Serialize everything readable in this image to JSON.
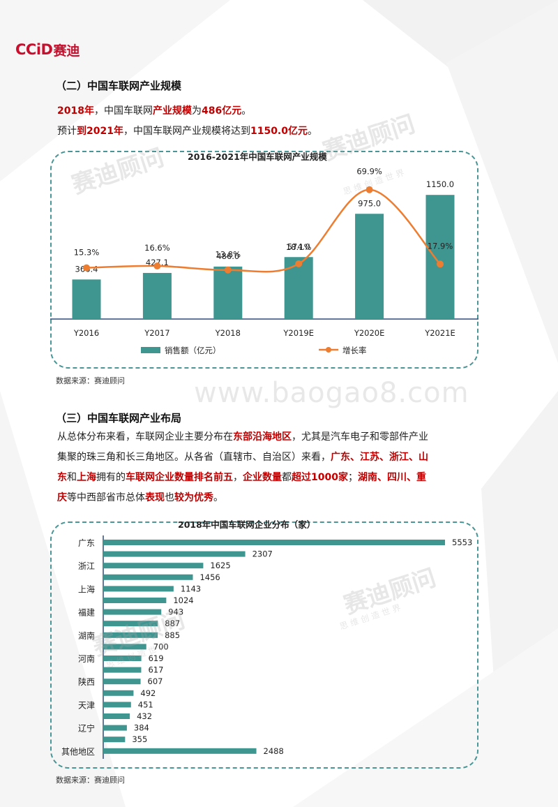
{
  "brand": {
    "logo_latin": "CCiD",
    "logo_cn": "赛迪"
  },
  "section2": {
    "title": "（二）中国车联网产业规模",
    "line1": [
      {
        "t": "2018年",
        "red": true
      },
      {
        "t": "，中国车联网",
        "red": false
      },
      {
        "t": "产业规模",
        "red": true
      },
      {
        "t": "为",
        "red": false
      },
      {
        "t": "486亿元",
        "red": true
      },
      {
        "t": "。",
        "red": false
      }
    ],
    "line2": [
      {
        "t": "预计",
        "red": false
      },
      {
        "t": "到2021年",
        "red": true
      },
      {
        "t": "，中国车联网产业规模将达到",
        "red": false
      },
      {
        "t": "1150.0亿元",
        "red": true
      },
      {
        "t": "。",
        "red": false
      }
    ]
  },
  "chart1_source": "数据来源：赛迪顾问",
  "section3": {
    "title": "（三）中国车联网产业布局",
    "paragraph_lines": [
      [
        {
          "t": "从总体分布来看，车联网企业主要分布在",
          "red": false
        },
        {
          "t": "东部沿海地区",
          "red": true
        },
        {
          "t": "，尤其是汽车电子和零部件产业",
          "red": false
        }
      ],
      [
        {
          "t": "集聚的珠三角和长三角地区。从各省（直辖市、自治区）来看，",
          "red": false
        },
        {
          "t": "广东、江苏、浙江、山",
          "red": true
        }
      ],
      [
        {
          "t": "东",
          "red": true
        },
        {
          "t": "和",
          "red": false
        },
        {
          "t": "上海",
          "red": true
        },
        {
          "t": "拥有的",
          "red": false
        },
        {
          "t": "车联网企业数量排名前五",
          "red": true
        },
        {
          "t": "，",
          "red": false
        },
        {
          "t": "企业数量",
          "red": true
        },
        {
          "t": "都",
          "red": false
        },
        {
          "t": "超过1000家",
          "red": true
        },
        {
          "t": "；",
          "red": false
        },
        {
          "t": "湖南、四川、重",
          "red": true
        }
      ],
      [
        {
          "t": "庆",
          "red": true
        },
        {
          "t": "等中西部省市总体",
          "red": false
        },
        {
          "t": "表现",
          "red": true
        },
        {
          "t": "也",
          "red": false
        },
        {
          "t": "较为优秀",
          "red": true
        },
        {
          "t": "。",
          "red": false
        }
      ]
    ]
  },
  "chart2_source": "数据来源：赛迪顾问",
  "watermark": {
    "url": "www.baogao8.com",
    "brand": "赛迪顾问",
    "slogan": "思 维 创 造 世 界"
  },
  "colors": {
    "brand_red": "#c8102e",
    "highlight_red": "#c00000",
    "bar_teal": "#3f9590",
    "line_orange": "#ed7d31",
    "frame_teal": "#4a9595"
  },
  "chart_data": [
    {
      "type": "bar+line",
      "title": "2016-2021年中国车联网产业规模",
      "categories": [
        "Y2016",
        "Y2017",
        "Y2018",
        "Y2019E",
        "Y2020E",
        "Y2021E"
      ],
      "series": [
        {
          "name": "销售额（亿元）",
          "type": "bar",
          "values": [
            366.4,
            427.1,
            486.0,
            574.0,
            975.0,
            1150.0
          ],
          "labels": [
            "366.4",
            "427.1",
            "486.0",
            "574.0",
            "975.0",
            "1150.0"
          ]
        },
        {
          "name": "增长率",
          "type": "line",
          "values": [
            15.3,
            16.6,
            13.8,
            18.1,
            69.9,
            17.9
          ],
          "labels": [
            "15.3%",
            "16.6%",
            "13.8%",
            "18.1%",
            "69.9%",
            "17.9%"
          ]
        }
      ],
      "ylim": [
        0,
        1300
      ],
      "y2lim": [
        -20,
        80
      ],
      "legend": "bottom"
    },
    {
      "type": "bar",
      "orientation": "horizontal",
      "title": "2018年中国车联网企业分布（家）",
      "visible_category_labels": [
        "广东",
        "",
        "浙江",
        "",
        "上海",
        "",
        "福建",
        "",
        "湖南",
        "",
        "河南",
        "",
        "陕西",
        "",
        "天津",
        "",
        "辽宁",
        "",
        "其他地区"
      ],
      "values": [
        5553,
        2307,
        1625,
        1456,
        1143,
        1024,
        943,
        887,
        885,
        700,
        619,
        617,
        607,
        492,
        451,
        432,
        384,
        355,
        2488
      ],
      "xlim": [
        0,
        5553
      ]
    }
  ]
}
